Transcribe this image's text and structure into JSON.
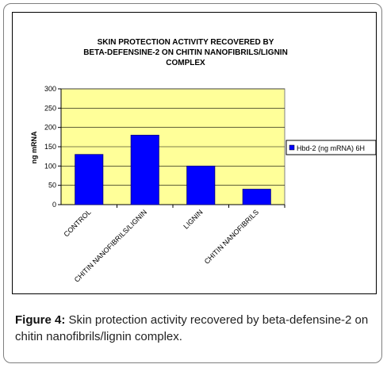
{
  "chart_data": {
    "type": "bar",
    "title_lines": [
      "SKIN PROTECTION ACTIVITY RECOVERED BY",
      "BETA-DEFENSINE-2 ON CHITIN NANOFIBRILS/LIGNIN",
      "COMPLEX"
    ],
    "categories": [
      "CONTROL",
      "CHITIN NANOFIBRILS/LIGNIN",
      "LIGNIN",
      "CHITIN NANOFIBRILS"
    ],
    "series": [
      {
        "name": "Hbd-2 (ng mRNA) 6H",
        "values": [
          130,
          180,
          100,
          40
        ]
      }
    ],
    "ylabel": "ng mRNA",
    "xlabel": "",
    "ylim": [
      0,
      300
    ],
    "yticks": [
      0,
      50,
      100,
      150,
      200,
      250,
      300
    ],
    "grid": true,
    "legend_position": "right",
    "colors": {
      "bar": "#0000ff",
      "bar_edge": "#000080",
      "plot_background": "#ffff99",
      "grid": "#000000"
    }
  },
  "caption": {
    "label": "Figure 4:",
    "text": " Skin protection activity recovered by beta-defensine-2 on chitin nanofibrils/lignin complex."
  }
}
